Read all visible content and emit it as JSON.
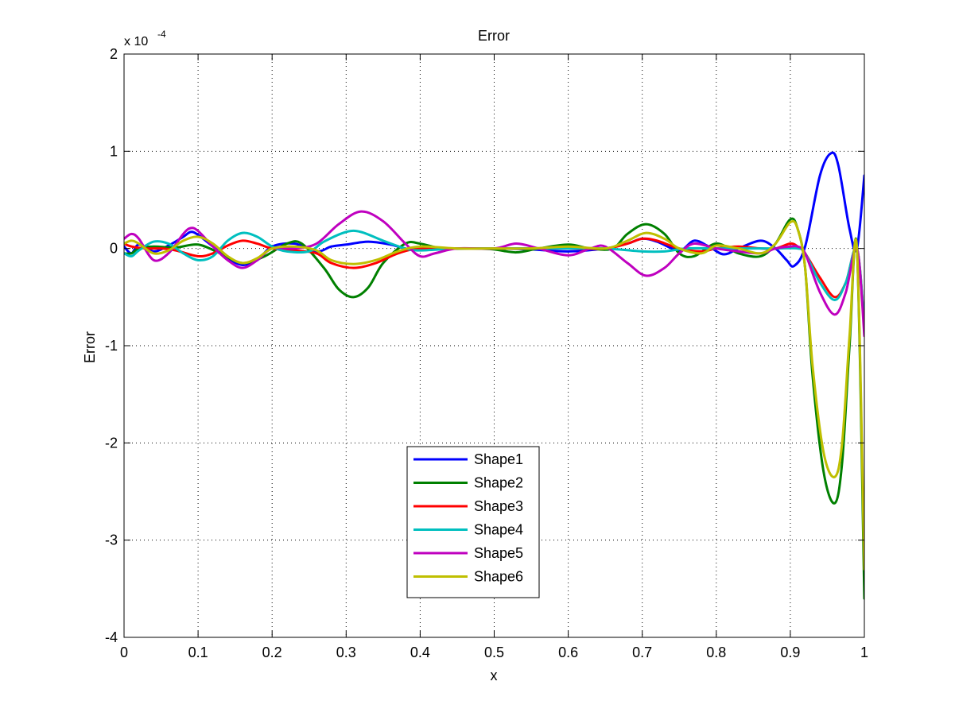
{
  "chart_data": {
    "type": "line",
    "title": "Error",
    "xlabel": "x",
    "ylabel": "Error",
    "xlim": [
      0,
      1
    ],
    "ylim": [
      -4,
      2
    ],
    "y_multiplier_label": "x 10",
    "y_multiplier_exponent": "-4",
    "xticks": [
      "0",
      "0.1",
      "0.2",
      "0.3",
      "0.4",
      "0.5",
      "0.6",
      "0.7",
      "0.8",
      "0.9",
      "1"
    ],
    "yticks": [
      "-4",
      "-3",
      "-2",
      "-1",
      "0",
      "1",
      "2"
    ],
    "grid": true,
    "legend_position": "lower-center",
    "series": [
      {
        "name": "Shape1",
        "color": "#0000ff",
        "points": [
          [
            0,
            0.02
          ],
          [
            0.01,
            -0.05
          ],
          [
            0.02,
            0.04
          ],
          [
            0.04,
            -0.03
          ],
          [
            0.06,
            0.03
          ],
          [
            0.08,
            0.12
          ],
          [
            0.09,
            0.17
          ],
          [
            0.1,
            0.14
          ],
          [
            0.12,
            0.02
          ],
          [
            0.14,
            -0.1
          ],
          [
            0.16,
            -0.17
          ],
          [
            0.18,
            -0.12
          ],
          [
            0.2,
            0.02
          ],
          [
            0.23,
            0.05
          ],
          [
            0.26,
            -0.03
          ],
          [
            0.28,
            0.02
          ],
          [
            0.3,
            0.04
          ],
          [
            0.33,
            0.07
          ],
          [
            0.36,
            0.04
          ],
          [
            0.38,
            0.0
          ],
          [
            0.4,
            -0.01
          ],
          [
            0.45,
            0.0
          ],
          [
            0.5,
            0.0
          ],
          [
            0.55,
            -0.01
          ],
          [
            0.6,
            -0.03
          ],
          [
            0.65,
            0.0
          ],
          [
            0.68,
            0.05
          ],
          [
            0.7,
            0.1
          ],
          [
            0.72,
            0.07
          ],
          [
            0.75,
            -0.02
          ],
          [
            0.77,
            0.08
          ],
          [
            0.79,
            0.02
          ],
          [
            0.81,
            -0.06
          ],
          [
            0.83,
            0.0
          ],
          [
            0.86,
            0.08
          ],
          [
            0.88,
            0.0
          ],
          [
            0.895,
            -0.12
          ],
          [
            0.905,
            -0.18
          ],
          [
            0.92,
            0.02
          ],
          [
            0.94,
            0.75
          ],
          [
            0.955,
            0.98
          ],
          [
            0.965,
            0.85
          ],
          [
            0.98,
            0.2
          ],
          [
            0.99,
            0.0
          ],
          [
            1.0,
            0.75
          ]
        ]
      },
      {
        "name": "Shape2",
        "color": "#008000",
        "points": [
          [
            0,
            -0.05
          ],
          [
            0.01,
            -0.05
          ],
          [
            0.02,
            0.0
          ],
          [
            0.04,
            0.02
          ],
          [
            0.07,
            0.01
          ],
          [
            0.1,
            0.04
          ],
          [
            0.13,
            -0.05
          ],
          [
            0.16,
            -0.15
          ],
          [
            0.19,
            -0.08
          ],
          [
            0.22,
            0.05
          ],
          [
            0.24,
            0.05
          ],
          [
            0.27,
            -0.2
          ],
          [
            0.29,
            -0.42
          ],
          [
            0.31,
            -0.5
          ],
          [
            0.33,
            -0.4
          ],
          [
            0.35,
            -0.15
          ],
          [
            0.38,
            0.05
          ],
          [
            0.4,
            0.05
          ],
          [
            0.43,
            0.0
          ],
          [
            0.47,
            0.0
          ],
          [
            0.5,
            -0.01
          ],
          [
            0.53,
            -0.04
          ],
          [
            0.56,
            0.0
          ],
          [
            0.6,
            0.04
          ],
          [
            0.63,
            0.0
          ],
          [
            0.66,
            0.0
          ],
          [
            0.68,
            0.15
          ],
          [
            0.705,
            0.25
          ],
          [
            0.73,
            0.15
          ],
          [
            0.75,
            -0.05
          ],
          [
            0.77,
            -0.08
          ],
          [
            0.8,
            0.05
          ],
          [
            0.83,
            -0.05
          ],
          [
            0.86,
            -0.08
          ],
          [
            0.88,
            0.05
          ],
          [
            0.9,
            0.3
          ],
          [
            0.91,
            0.2
          ],
          [
            0.92,
            -0.2
          ],
          [
            0.93,
            -1.3
          ],
          [
            0.945,
            -2.3
          ],
          [
            0.96,
            -2.62
          ],
          [
            0.97,
            -2.2
          ],
          [
            0.98,
            -1.0
          ],
          [
            0.99,
            0.0
          ],
          [
            1.0,
            -3.6
          ]
        ]
      },
      {
        "name": "Shape3",
        "color": "#ff0000",
        "points": [
          [
            0,
            0.05
          ],
          [
            0.01,
            0.02
          ],
          [
            0.03,
            0.0
          ],
          [
            0.05,
            0.0
          ],
          [
            0.07,
            -0.02
          ],
          [
            0.1,
            -0.08
          ],
          [
            0.12,
            -0.05
          ],
          [
            0.14,
            0.03
          ],
          [
            0.16,
            0.08
          ],
          [
            0.18,
            0.05
          ],
          [
            0.2,
            0.0
          ],
          [
            0.23,
            -0.02
          ],
          [
            0.26,
            -0.05
          ],
          [
            0.28,
            -0.15
          ],
          [
            0.31,
            -0.2
          ],
          [
            0.34,
            -0.15
          ],
          [
            0.37,
            -0.05
          ],
          [
            0.4,
            0.0
          ],
          [
            0.45,
            0.0
          ],
          [
            0.5,
            0.0
          ],
          [
            0.55,
            0.0
          ],
          [
            0.6,
            0.0
          ],
          [
            0.65,
            0.0
          ],
          [
            0.68,
            0.05
          ],
          [
            0.7,
            0.1
          ],
          [
            0.72,
            0.08
          ],
          [
            0.75,
            0.0
          ],
          [
            0.78,
            -0.03
          ],
          [
            0.8,
            0.0
          ],
          [
            0.83,
            0.02
          ],
          [
            0.86,
            0.0
          ],
          [
            0.88,
            0.0
          ],
          [
            0.9,
            0.05
          ],
          [
            0.91,
            0.02
          ],
          [
            0.92,
            -0.05
          ],
          [
            0.94,
            -0.3
          ],
          [
            0.96,
            -0.5
          ],
          [
            0.975,
            -0.35
          ],
          [
            0.99,
            0.0
          ],
          [
            1.0,
            -0.8
          ]
        ]
      },
      {
        "name": "Shape4",
        "color": "#00bfbf",
        "points": [
          [
            0,
            -0.05
          ],
          [
            0.01,
            -0.08
          ],
          [
            0.02,
            -0.02
          ],
          [
            0.04,
            0.07
          ],
          [
            0.06,
            0.05
          ],
          [
            0.08,
            -0.05
          ],
          [
            0.1,
            -0.12
          ],
          [
            0.12,
            -0.08
          ],
          [
            0.14,
            0.08
          ],
          [
            0.16,
            0.16
          ],
          [
            0.18,
            0.12
          ],
          [
            0.2,
            0.02
          ],
          [
            0.22,
            -0.03
          ],
          [
            0.25,
            -0.03
          ],
          [
            0.27,
            0.07
          ],
          [
            0.3,
            0.17
          ],
          [
            0.32,
            0.17
          ],
          [
            0.35,
            0.08
          ],
          [
            0.38,
            0.0
          ],
          [
            0.4,
            -0.02
          ],
          [
            0.45,
            0.0
          ],
          [
            0.5,
            0.0
          ],
          [
            0.55,
            0.0
          ],
          [
            0.6,
            0.0
          ],
          [
            0.65,
            0.0
          ],
          [
            0.7,
            -0.03
          ],
          [
            0.73,
            -0.03
          ],
          [
            0.76,
            0.0
          ],
          [
            0.8,
            0.0
          ],
          [
            0.84,
            0.0
          ],
          [
            0.88,
            0.0
          ],
          [
            0.91,
            0.0
          ],
          [
            0.92,
            -0.05
          ],
          [
            0.94,
            -0.35
          ],
          [
            0.96,
            -0.53
          ],
          [
            0.975,
            -0.35
          ],
          [
            0.99,
            0.0
          ],
          [
            1.0,
            -0.8
          ]
        ]
      },
      {
        "name": "Shape5",
        "color": "#bf00bf",
        "points": [
          [
            0,
            0.1
          ],
          [
            0.01,
            0.15
          ],
          [
            0.02,
            0.1
          ],
          [
            0.04,
            -0.12
          ],
          [
            0.06,
            -0.05
          ],
          [
            0.08,
            0.15
          ],
          [
            0.09,
            0.21
          ],
          [
            0.1,
            0.18
          ],
          [
            0.12,
            0.02
          ],
          [
            0.14,
            -0.12
          ],
          [
            0.16,
            -0.2
          ],
          [
            0.18,
            -0.12
          ],
          [
            0.2,
            0.0
          ],
          [
            0.23,
            0.0
          ],
          [
            0.26,
            0.05
          ],
          [
            0.29,
            0.25
          ],
          [
            0.32,
            0.38
          ],
          [
            0.35,
            0.28
          ],
          [
            0.38,
            0.05
          ],
          [
            0.4,
            -0.08
          ],
          [
            0.42,
            -0.05
          ],
          [
            0.45,
            0.0
          ],
          [
            0.5,
            0.0
          ],
          [
            0.53,
            0.05
          ],
          [
            0.56,
            0.0
          ],
          [
            0.6,
            -0.07
          ],
          [
            0.63,
            0.0
          ],
          [
            0.65,
            0.02
          ],
          [
            0.68,
            -0.15
          ],
          [
            0.705,
            -0.28
          ],
          [
            0.73,
            -0.2
          ],
          [
            0.75,
            -0.05
          ],
          [
            0.77,
            0.05
          ],
          [
            0.8,
            0.0
          ],
          [
            0.83,
            -0.03
          ],
          [
            0.86,
            -0.05
          ],
          [
            0.88,
            0.0
          ],
          [
            0.9,
            0.02
          ],
          [
            0.91,
            0.02
          ],
          [
            0.92,
            -0.05
          ],
          [
            0.94,
            -0.45
          ],
          [
            0.96,
            -0.68
          ],
          [
            0.975,
            -0.45
          ],
          [
            0.99,
            0.0
          ],
          [
            1.0,
            -0.9
          ]
        ]
      },
      {
        "name": "Shape6",
        "color": "#bfbf00",
        "points": [
          [
            0,
            0.05
          ],
          [
            0.01,
            0.08
          ],
          [
            0.02,
            0.05
          ],
          [
            0.04,
            -0.05
          ],
          [
            0.06,
            -0.02
          ],
          [
            0.08,
            0.08
          ],
          [
            0.1,
            0.12
          ],
          [
            0.12,
            0.05
          ],
          [
            0.14,
            -0.08
          ],
          [
            0.16,
            -0.15
          ],
          [
            0.18,
            -0.1
          ],
          [
            0.2,
            0.0
          ],
          [
            0.23,
            0.02
          ],
          [
            0.26,
            -0.02
          ],
          [
            0.28,
            -0.12
          ],
          [
            0.31,
            -0.16
          ],
          [
            0.34,
            -0.12
          ],
          [
            0.37,
            -0.03
          ],
          [
            0.4,
            0.02
          ],
          [
            0.45,
            0.0
          ],
          [
            0.5,
            0.0
          ],
          [
            0.55,
            0.0
          ],
          [
            0.6,
            0.02
          ],
          [
            0.65,
            0.0
          ],
          [
            0.68,
            0.08
          ],
          [
            0.705,
            0.16
          ],
          [
            0.73,
            0.1
          ],
          [
            0.75,
            0.0
          ],
          [
            0.78,
            -0.05
          ],
          [
            0.8,
            0.03
          ],
          [
            0.83,
            0.0
          ],
          [
            0.86,
            -0.05
          ],
          [
            0.88,
            0.05
          ],
          [
            0.9,
            0.27
          ],
          [
            0.91,
            0.2
          ],
          [
            0.92,
            -0.2
          ],
          [
            0.93,
            -1.2
          ],
          [
            0.945,
            -2.1
          ],
          [
            0.96,
            -2.35
          ],
          [
            0.97,
            -2.0
          ],
          [
            0.98,
            -0.9
          ],
          [
            0.99,
            0.0
          ],
          [
            1.0,
            -3.3
          ]
        ]
      }
    ]
  }
}
